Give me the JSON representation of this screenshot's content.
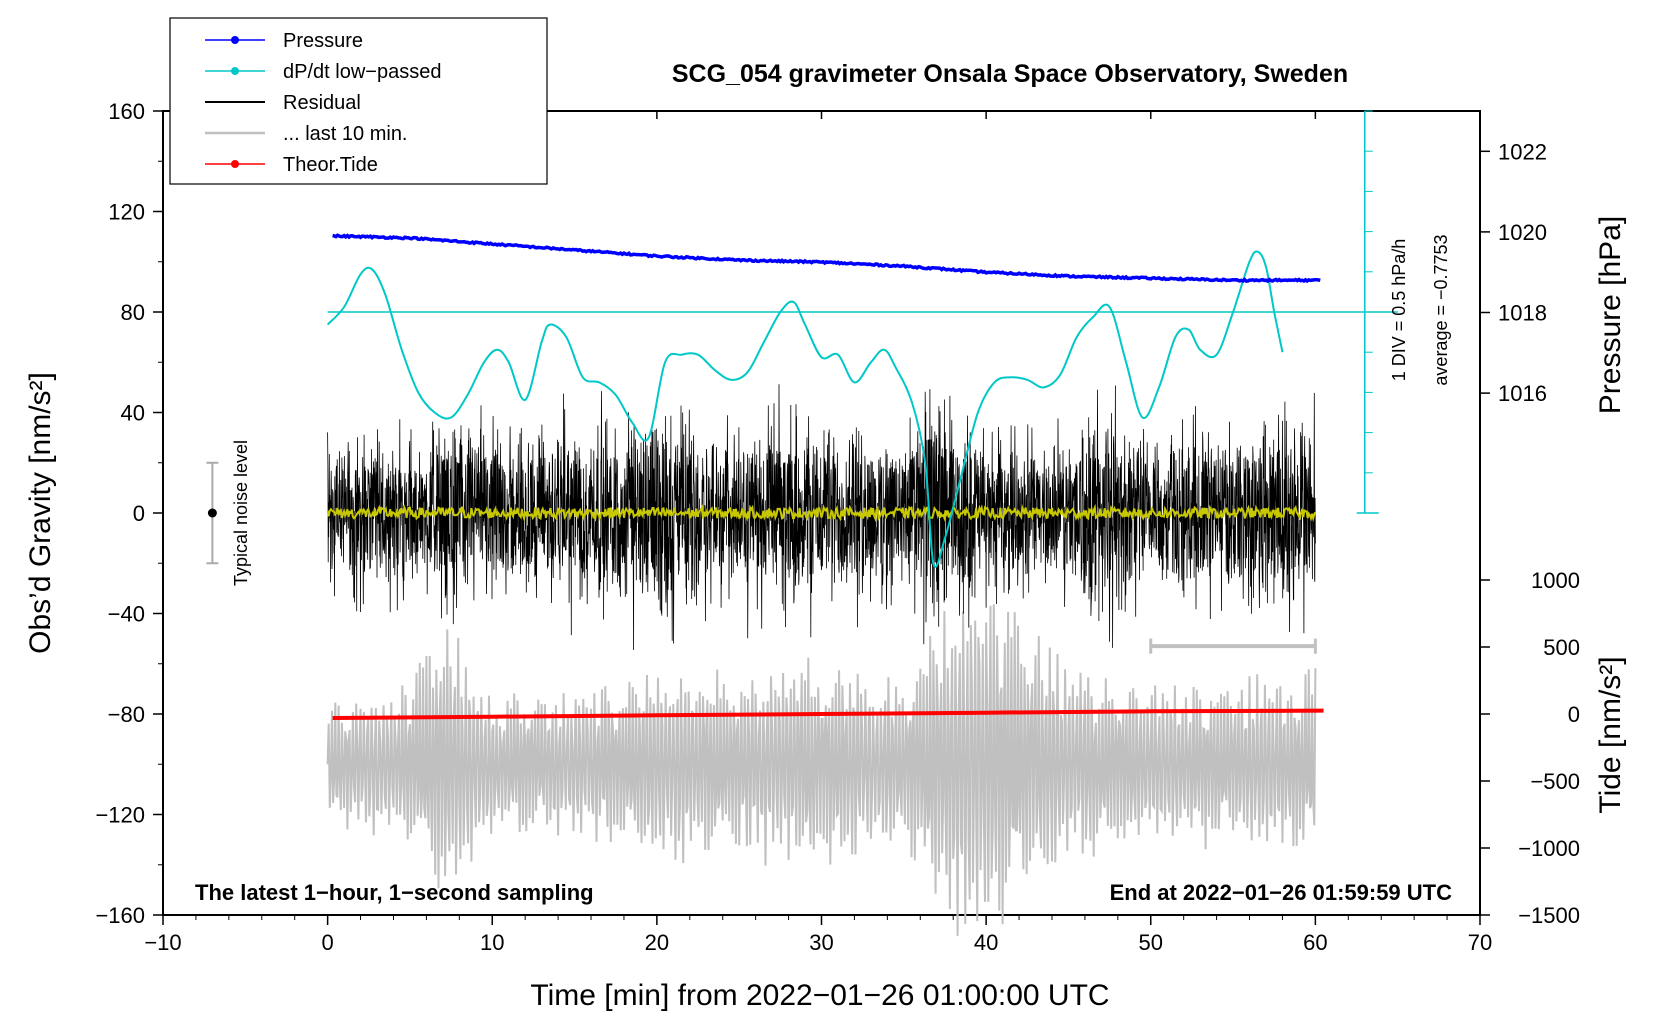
{
  "chart_data": {
    "type": "line",
    "title": "SCG_054 gravimeter Onsala Space Observatory, Sweden",
    "xlabel": "Time [min] from 2022−01−26 01:00:00 UTC",
    "ylabel": "Obs’d Gravity [nm/s²]",
    "ylabel_right_top": "Pressure [hPa]",
    "ylabel_right_bottom": "Tide [nm/s²]",
    "xlim": [
      -10,
      70
    ],
    "ylim": [
      -160,
      160
    ],
    "x_ticks": [
      -10,
      0,
      10,
      20,
      30,
      40,
      50,
      60,
      70
    ],
    "x_tick_labels": [
      "−10",
      "0",
      "10",
      "20",
      "30",
      "40",
      "50",
      "60",
      "70"
    ],
    "y_ticks": [
      160,
      120,
      80,
      40,
      0,
      -40,
      -80,
      -120,
      -160
    ],
    "y_tick_labels": [
      "160",
      "120",
      "80",
      "40",
      "0",
      "−40",
      "−80",
      "−120",
      "−160"
    ],
    "pressure_axis": {
      "range": [
        1013,
        1023
      ],
      "ticks": [
        1016,
        1018,
        1020,
        1022
      ],
      "tick_labels": [
        "1016",
        "1018",
        "1020",
        "1022"
      ]
    },
    "tide_axis": {
      "range": [
        -1500,
        1000
      ],
      "ticks": [
        1000,
        500,
        0,
        -500,
        -1000,
        -1500
      ],
      "tick_labels": [
        "1000",
        "500",
        "0",
        "−500",
        "−1000",
        "−1500"
      ]
    },
    "legend": [
      {
        "label": "Pressure",
        "color": "#0000ff",
        "marker": true
      },
      {
        "label": "dP/dt low−passed",
        "color": "#00c8c8",
        "marker": true
      },
      {
        "label": "Residual",
        "color": "#000000",
        "marker": false
      },
      {
        "label": "... last 10 min.",
        "color": "#c0c0c0",
        "marker": false
      },
      {
        "label": "Theor.Tide",
        "color": "#ff0000",
        "marker": true
      }
    ],
    "series": [
      {
        "name": "Pressure",
        "color": "#0000ff",
        "unit": "hPa",
        "x": [
          0.3,
          5,
          10,
          15,
          20,
          25,
          30,
          35,
          40,
          45,
          50,
          55,
          60.3
        ],
        "values": [
          1019.9,
          1019.85,
          1019.7,
          1019.55,
          1019.4,
          1019.3,
          1019.25,
          1019.15,
          1019.0,
          1018.9,
          1018.85,
          1018.8,
          1018.8
        ]
      },
      {
        "name": "dP/dt low−passed",
        "color": "#00c8c8",
        "unit": "hPa/h (display value, gravity axis units)",
        "x": [
          0,
          1,
          2,
          2.7,
          3.5,
          4.5,
          5.5,
          6.5,
          7.5,
          8.5,
          9.5,
          10.3,
          11,
          12,
          13,
          13.5,
          14.5,
          15.5,
          16.5,
          17.5,
          18.5,
          19.5,
          20.5,
          21.5,
          22.5,
          23.5,
          24.5,
          25.5,
          26.5,
          27.5,
          28.3,
          29,
          30,
          31,
          32,
          33,
          33.8,
          34.5,
          35.5,
          36.3,
          36.8,
          37.5,
          38.5,
          39.5,
          40.5,
          41.5,
          42.5,
          43.5,
          44.5,
          45.5,
          46.5,
          47.5,
          48.5,
          49.5,
          50.5,
          51.5,
          52.3,
          53,
          54,
          55,
          56,
          56.5,
          57,
          57.5,
          58
        ],
        "values": [
          75,
          82,
          95,
          97,
          87,
          65,
          48,
          40,
          38,
          47,
          60,
          65,
          60,
          45,
          68,
          75,
          70,
          54,
          52,
          47,
          36,
          30,
          60,
          63,
          63,
          57,
          53,
          56,
          68,
          80,
          84,
          75,
          62,
          63,
          52,
          60,
          65,
          58,
          44,
          20,
          -20,
          -10,
          15,
          40,
          52,
          54,
          53,
          50,
          55,
          70,
          78,
          82,
          60,
          38,
          50,
          70,
          73,
          65,
          63,
          80,
          100,
          104,
          98,
          80,
          64
        ]
      },
      {
        "name": "Residual",
        "color": "#000000",
        "unit": "nm/s²",
        "x_range": [
          0,
          60
        ],
        "amplitude_envelope": {
          "x": [
            0,
            5,
            8,
            10,
            15,
            20,
            25,
            30,
            35,
            37,
            40,
            45,
            47,
            50,
            55,
            57,
            60
          ],
          "values": [
            50,
            45,
            60,
            50,
            55,
            70,
            55,
            60,
            50,
            80,
            45,
            50,
            70,
            50,
            55,
            70,
            60
          ]
        }
      },
      {
        "name": "Residual (smoothed)",
        "color": "#c8c800",
        "unit": "nm/s²",
        "x_range": [
          0,
          60
        ],
        "values_description": "near zero, within ±3"
      },
      {
        "name": "... last 10 min.",
        "color": "#c0c0c0",
        "unit": "nm/s² (tide axis scale)",
        "x_range": [
          0,
          60
        ],
        "amplitude_envelope": {
          "x": [
            0,
            5,
            7,
            10,
            15,
            20,
            25,
            30,
            35,
            38,
            40,
            45,
            50,
            55,
            60
          ],
          "values": [
            25,
            35,
            60,
            30,
            30,
            40,
            40,
            45,
            35,
            70,
            75,
            40,
            35,
            35,
            40
          ]
        }
      },
      {
        "name": "Theor.Tide",
        "color": "#ff0000",
        "unit": "nm/s²",
        "x": [
          0.3,
          10,
          20,
          30,
          40,
          50,
          60.5
        ],
        "values": [
          -30,
          -20,
          -10,
          0,
          10,
          20,
          25
        ]
      }
    ],
    "annotations": {
      "bottom_left": "The latest 1−hour, 1−second sampling",
      "bottom_right": "End at 2022−01−26 01:59:59 UTC",
      "noise_label": "Typical noise level",
      "dpdt_scale": "1 DIV = 0.5 hPa/h",
      "dpdt_average": "average = −0.7753"
    }
  }
}
